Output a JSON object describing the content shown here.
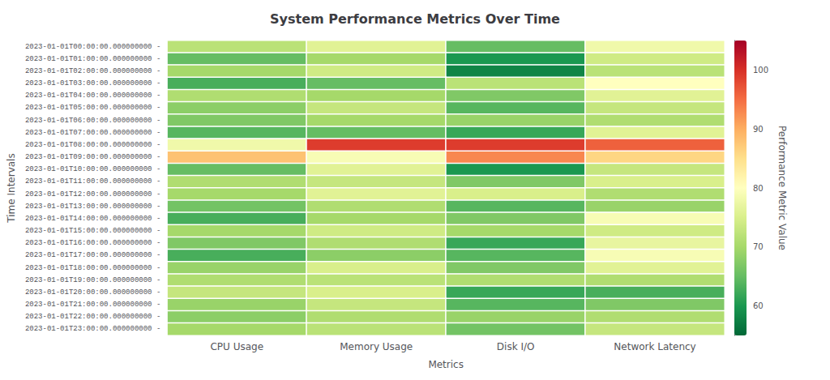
{
  "chart_data": {
    "type": "heatmap",
    "title": "System Performance Metrics Over Time",
    "xlabel": "Metrics",
    "ylabel": "Time Intervals",
    "categories": [
      "CPU Usage",
      "Memory Usage",
      "Disk I/O",
      "Network Latency"
    ],
    "y_categories": [
      "2023-01-01T00:00:00.000000000 -",
      "2023-01-01T01:00:00.000000000 -",
      "2023-01-01T02:00:00.000000000 -",
      "2023-01-01T03:00:00.000000000 -",
      "2023-01-01T04:00:00.000000000 -",
      "2023-01-01T05:00:00.000000000 -",
      "2023-01-01T06:00:00.000000000 -",
      "2023-01-01T07:00:00.000000000 -",
      "2023-01-01T08:00:00.000000000 -",
      "2023-01-01T09:00:00.000000000 -",
      "2023-01-01T10:00:00.000000000 -",
      "2023-01-01T11:00:00.000000000 -",
      "2023-01-01T12:00:00.000000000 -",
      "2023-01-01T13:00:00.000000000 -",
      "2023-01-01T14:00:00.000000000 -",
      "2023-01-01T15:00:00.000000000 -",
      "2023-01-01T16:00:00.000000000 -",
      "2023-01-01T17:00:00.000000000 -",
      "2023-01-01T18:00:00.000000000 -",
      "2023-01-01T19:00:00.000000000 -",
      "2023-01-01T20:00:00.000000000 -",
      "2023-01-01T21:00:00.000000000 -",
      "2023-01-01T22:00:00.000000000 -",
      "2023-01-01T23:00:00.000000000 -"
    ],
    "values": [
      [
        72,
        76,
        65,
        78
      ],
      [
        65,
        70,
        60,
        74
      ],
      [
        70,
        74,
        58,
        72
      ],
      [
        63,
        65,
        72,
        80
      ],
      [
        71,
        70,
        67,
        76
      ],
      [
        68,
        73,
        64,
        73
      ],
      [
        67,
        70,
        69,
        71
      ],
      [
        64,
        65,
        62,
        76
      ],
      [
        78,
        99,
        99,
        96
      ],
      [
        88,
        79,
        93,
        86
      ],
      [
        65,
        76,
        60,
        73
      ],
      [
        71,
        73,
        67,
        75
      ],
      [
        70,
        76,
        75,
        71
      ],
      [
        66,
        71,
        64,
        69
      ],
      [
        63,
        70,
        67,
        79
      ],
      [
        70,
        74,
        70,
        74
      ],
      [
        67,
        71,
        62,
        77
      ],
      [
        63,
        68,
        64,
        79
      ],
      [
        69,
        75,
        67,
        76
      ],
      [
        71,
        72,
        71,
        71
      ],
      [
        73,
        75,
        62,
        63
      ],
      [
        69,
        73,
        64,
        67
      ],
      [
        68,
        71,
        69,
        71
      ],
      [
        70,
        72,
        66,
        73
      ]
    ],
    "colorbar": {
      "label": "Performance Metric Value",
      "range": [
        55,
        105
      ],
      "ticks": [
        60,
        70,
        80,
        90,
        100
      ],
      "colors": [
        "#006837",
        "#1a9850",
        "#66bd63",
        "#a6d96a",
        "#d9ef8b",
        "#ffffbf",
        "#fee08b",
        "#fdae61",
        "#f46d43",
        "#d73027",
        "#a50026"
      ]
    }
  }
}
